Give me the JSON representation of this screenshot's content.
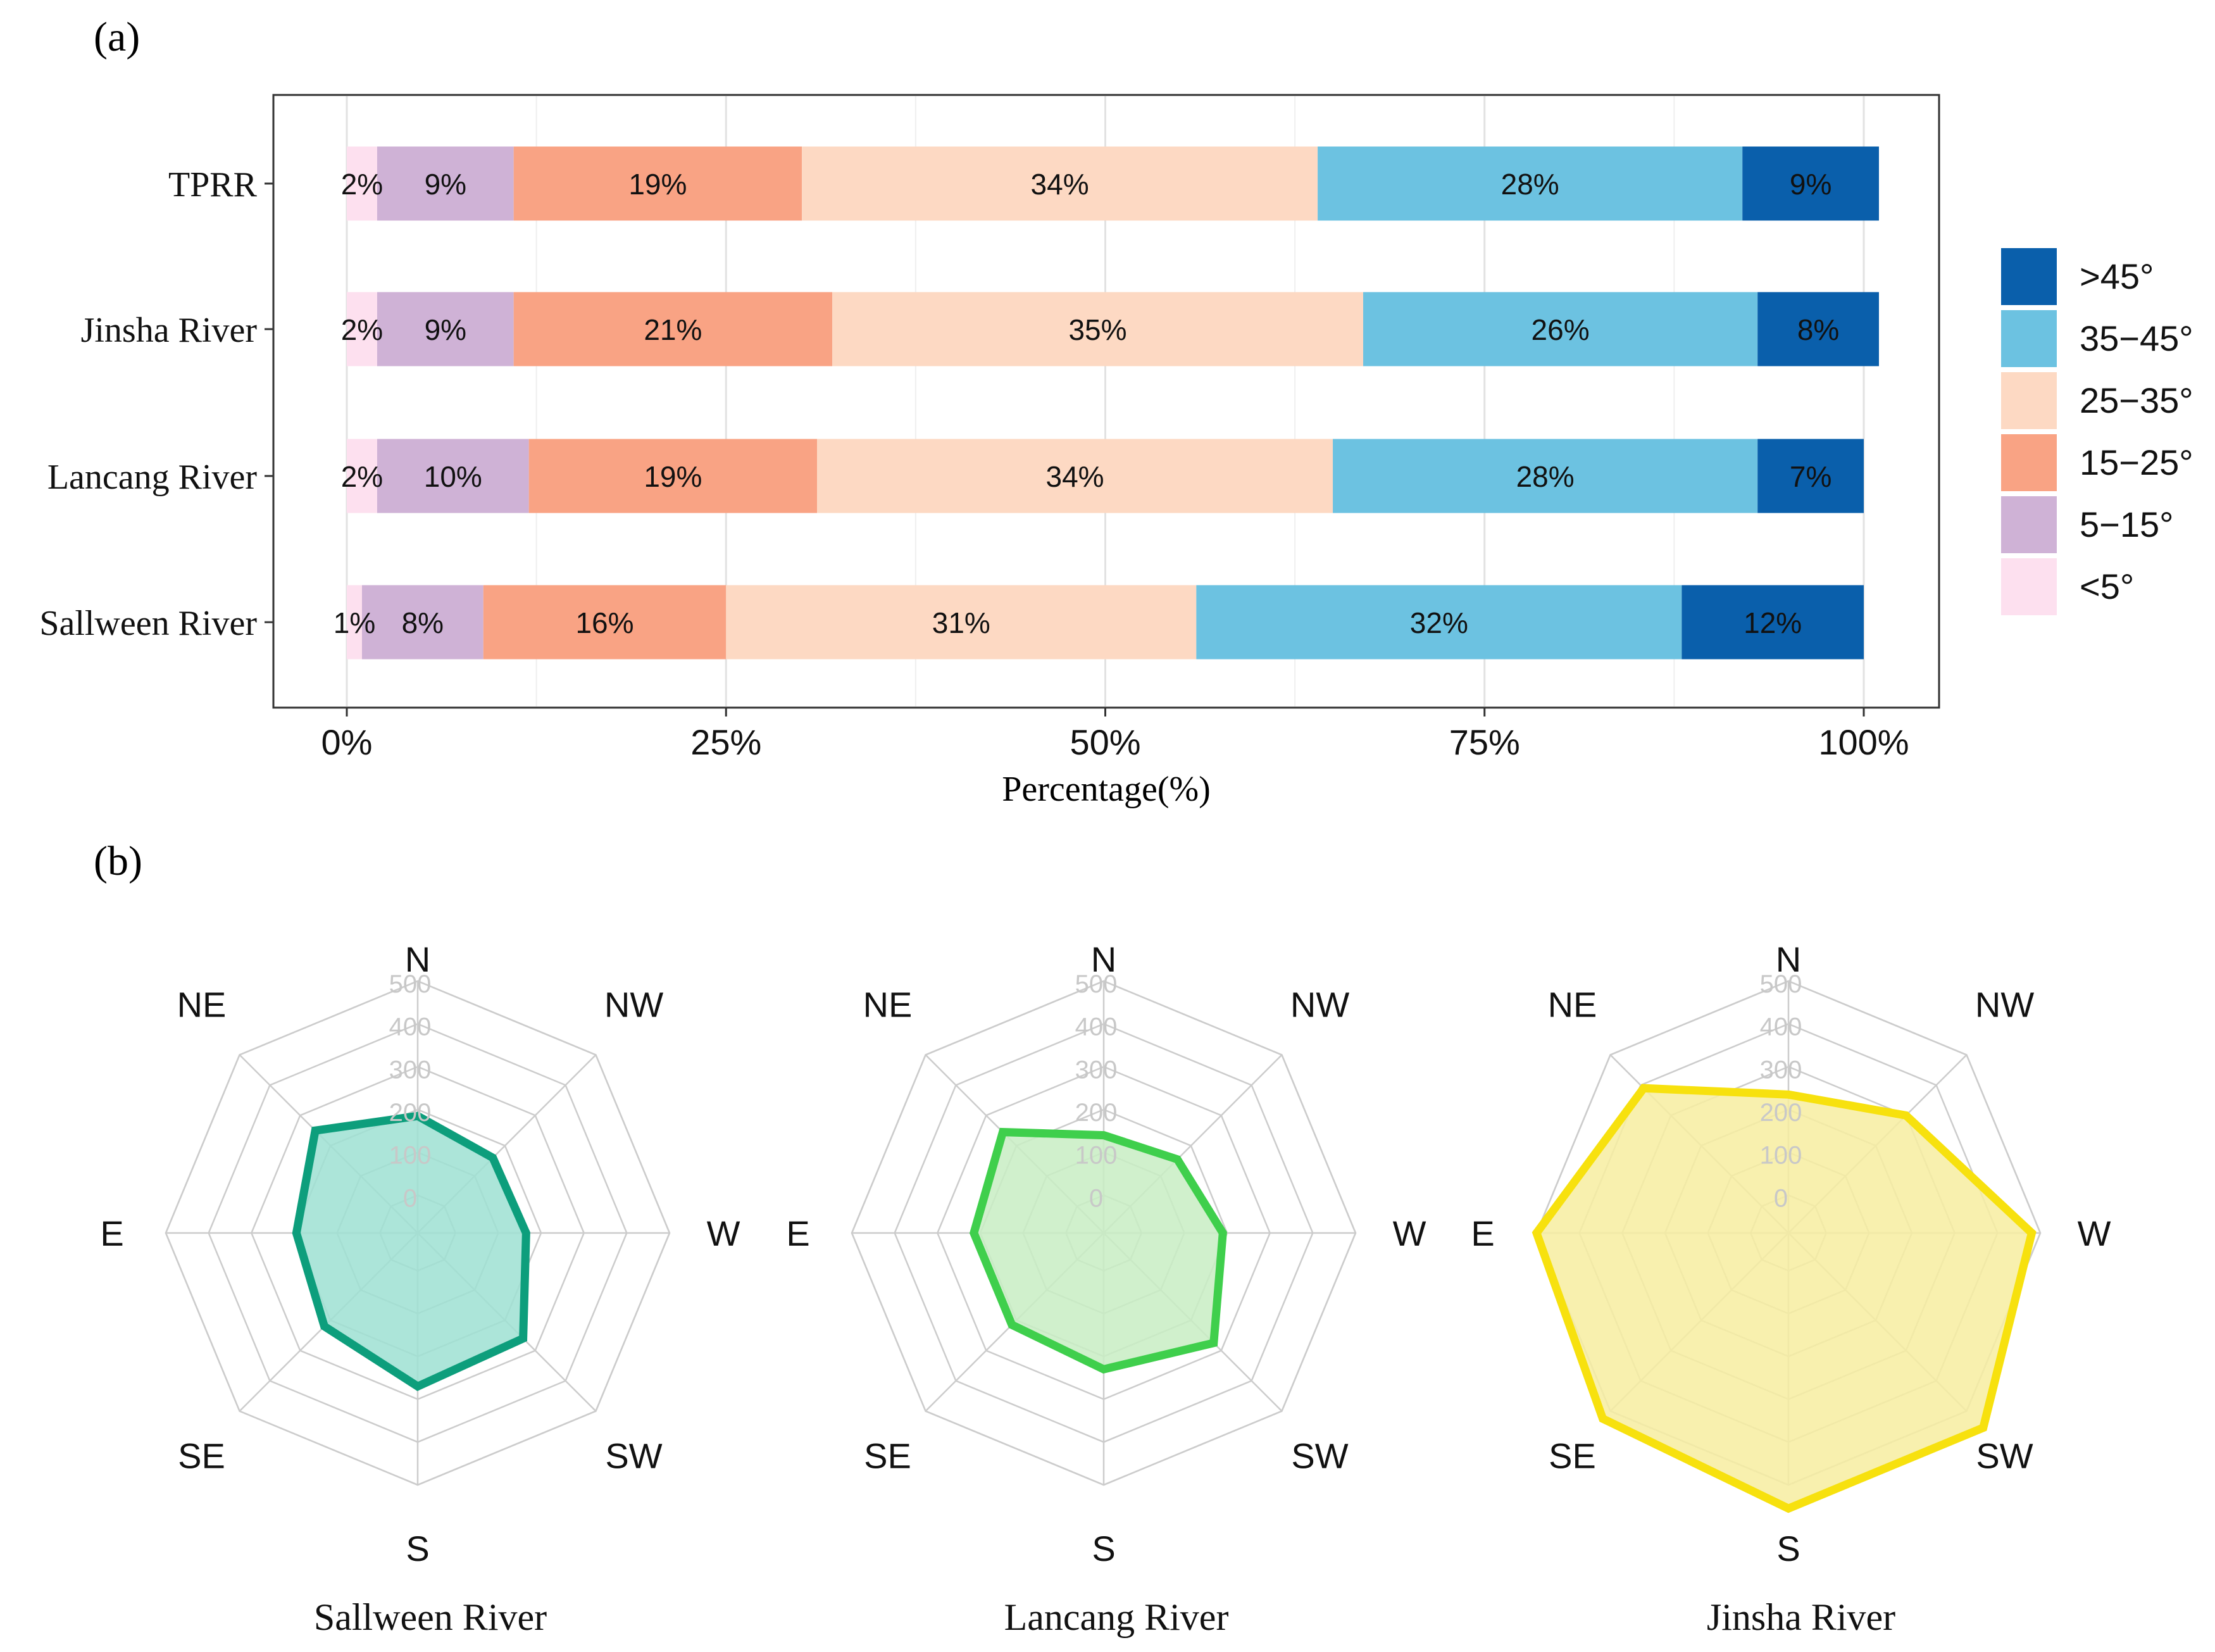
{
  "panel_a": {
    "label": "(a)",
    "chart_data": {
      "type": "bar",
      "orientation": "horizontal",
      "stacked": true,
      "categories": [
        "TPRR",
        "Jinsha River",
        "Lancang River",
        "Sallween River"
      ],
      "series": [
        {
          "name": "<5°",
          "color": "#fde0ef",
          "values": [
            2,
            2,
            2,
            1
          ],
          "labels": [
            "2%",
            "2%",
            "2%",
            "1%"
          ]
        },
        {
          "name": "5−15°",
          "color": "#cfb2d6",
          "values": [
            9,
            9,
            10,
            8
          ],
          "labels": [
            "9%",
            "9%",
            "10%",
            "8%"
          ]
        },
        {
          "name": "15−25°",
          "color": "#f9a384",
          "values": [
            19,
            21,
            19,
            16
          ],
          "labels": [
            "19%",
            "21%",
            "19%",
            "16%"
          ]
        },
        {
          "name": "25−35°",
          "color": "#fdd9c3",
          "values": [
            34,
            35,
            34,
            31
          ],
          "labels": [
            "34%",
            "35%",
            "34%",
            "31%"
          ]
        },
        {
          "name": "35−45°",
          "color": "#6cc2e1",
          "values": [
            28,
            26,
            28,
            32
          ],
          "labels": [
            "28%",
            "26%",
            "28%",
            "32%"
          ]
        },
        {
          "name": ">45°",
          "color": "#0a5fab",
          "values": [
            9,
            8,
            7,
            12
          ],
          "labels": [
            "9%",
            "8%",
            "7%",
            "12%"
          ]
        }
      ],
      "legend_order": [
        ">45°",
        "35−45°",
        "25−35°",
        "15−25°",
        "5−15°",
        "<5°"
      ],
      "xlim": [
        0,
        100
      ],
      "xticks": [
        0,
        25,
        50,
        75,
        100
      ],
      "xtick_labels": [
        "0%",
        "25%",
        "50%",
        "75%",
        "100%"
      ],
      "xlabel": "Percentage(%)",
      "ylabel": "",
      "legend_position": "right"
    }
  },
  "panel_b": {
    "label": "(b)",
    "chart_data": [
      {
        "type": "radar",
        "title": "Sallween River",
        "color": "#0d9e7c",
        "fill": "#9ee0d2",
        "directions": [
          "N",
          "NW",
          "W",
          "SW",
          "S",
          "SE",
          "E",
          "NE"
        ],
        "values": [
          185,
          160,
          165,
          260,
          270,
          220,
          195,
          250
        ],
        "rmax": 500,
        "rticks": [
          0,
          100,
          200,
          300,
          400,
          500
        ]
      },
      {
        "type": "radar",
        "title": "Lancang River",
        "color": "#3fcf4c",
        "fill": "#c8edc3",
        "directions": [
          "N",
          "NW",
          "W",
          "SW",
          "S",
          "SE",
          "E",
          "NE"
        ],
        "values": [
          140,
          155,
          190,
          275,
          230,
          215,
          215,
          245
        ],
        "rmax": 500,
        "rticks": [
          0,
          100,
          200,
          300,
          400,
          500
        ]
      },
      {
        "type": "radar",
        "title": "Jinsha River",
        "color": "#f7e10e",
        "fill": "#f7eda0",
        "directions": [
          "N",
          "NW",
          "W",
          "SW",
          "S",
          "SE",
          "E",
          "NE"
        ],
        "values": [
          235,
          300,
          480,
          555,
          555,
          525,
          500,
          390
        ],
        "rmax": 500,
        "rticks": [
          0,
          100,
          200,
          300,
          400,
          500
        ]
      }
    ]
  }
}
